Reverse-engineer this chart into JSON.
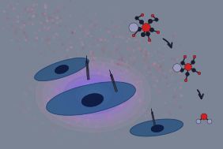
{
  "bg_color": "#7b8494",
  "fig_width": 2.82,
  "fig_height": 1.89,
  "dpi": 100,
  "cell_color": "#3a608a",
  "cell_edge": "#1a3a6a",
  "nucleus_color": "#0d1a40",
  "laser_color": "#bb1133",
  "probe_body_color": "#222235",
  "probe_head_color": "#444455",
  "molecule_dark": "#1a1a2e",
  "molecule_red": "#cc2020",
  "molecule_gray": "#9999bb",
  "arrow_color": "#1a1a2e",
  "glow_blue": "#6688ff",
  "glow_purple": "#cc55ee",
  "glow_pink": "#ee88cc"
}
